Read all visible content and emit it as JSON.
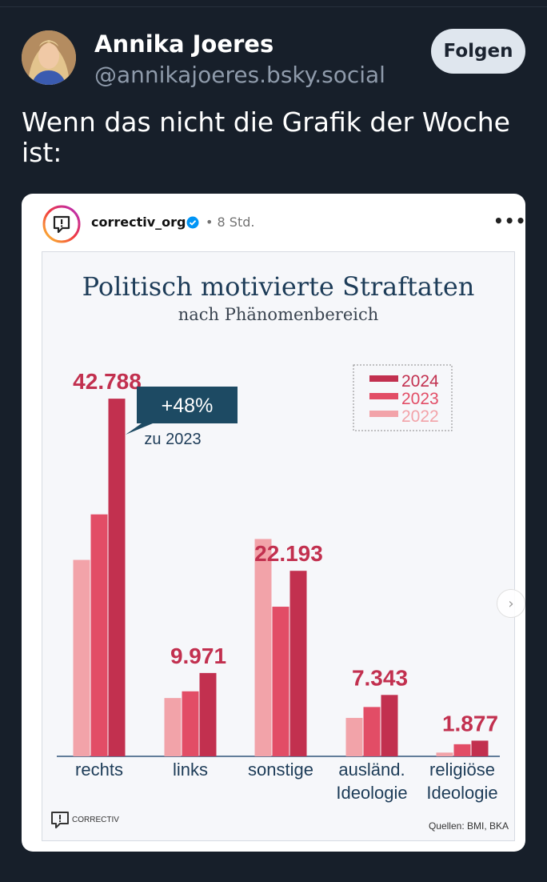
{
  "post": {
    "author_name": "Annika Joeres",
    "author_handle": "@annikajoeres.bsky.social",
    "follow_label": "Folgen",
    "text": "Wenn das nicht die Grafik der Woche ist:"
  },
  "embed": {
    "username": "correctiv_org",
    "time": "• 8 Std.",
    "more": "•••",
    "logo_text": "CORRECTIV",
    "source": "Quellen: BMI, BKA"
  },
  "colors": {
    "y2024": "#c2304f",
    "y2023": "#e24d66",
    "y2022": "#f2a3a9",
    "title": "#1d3c58",
    "callout": "#1d4a63"
  },
  "chart_data": {
    "type": "bar",
    "title": "Politisch motivierte Straftaten",
    "subtitle": "nach Phänomenbereich",
    "categories": [
      "rechts",
      "links",
      "sonstige",
      "ausländ. Ideologie",
      "religiöse Ideologie"
    ],
    "series": [
      {
        "name": "2022",
        "values": [
          23500,
          6976,
          26000,
          4600,
          450
        ]
      },
      {
        "name": "2023",
        "values": [
          28945,
          7777,
          17900,
          5900,
          1450
        ]
      },
      {
        "name": "2024",
        "values": [
          42788,
          9971,
          22193,
          7343,
          1877
        ]
      }
    ],
    "value_labels": [
      "42.788",
      "9.971",
      "22.193",
      "7.343",
      "1.877"
    ],
    "legend": [
      "2024",
      "2023",
      "2022"
    ],
    "legend_position": "top-right",
    "callout": {
      "value": "+48%",
      "note": "zu 2023"
    },
    "ylim": [
      0,
      45000
    ],
    "grid": false
  }
}
